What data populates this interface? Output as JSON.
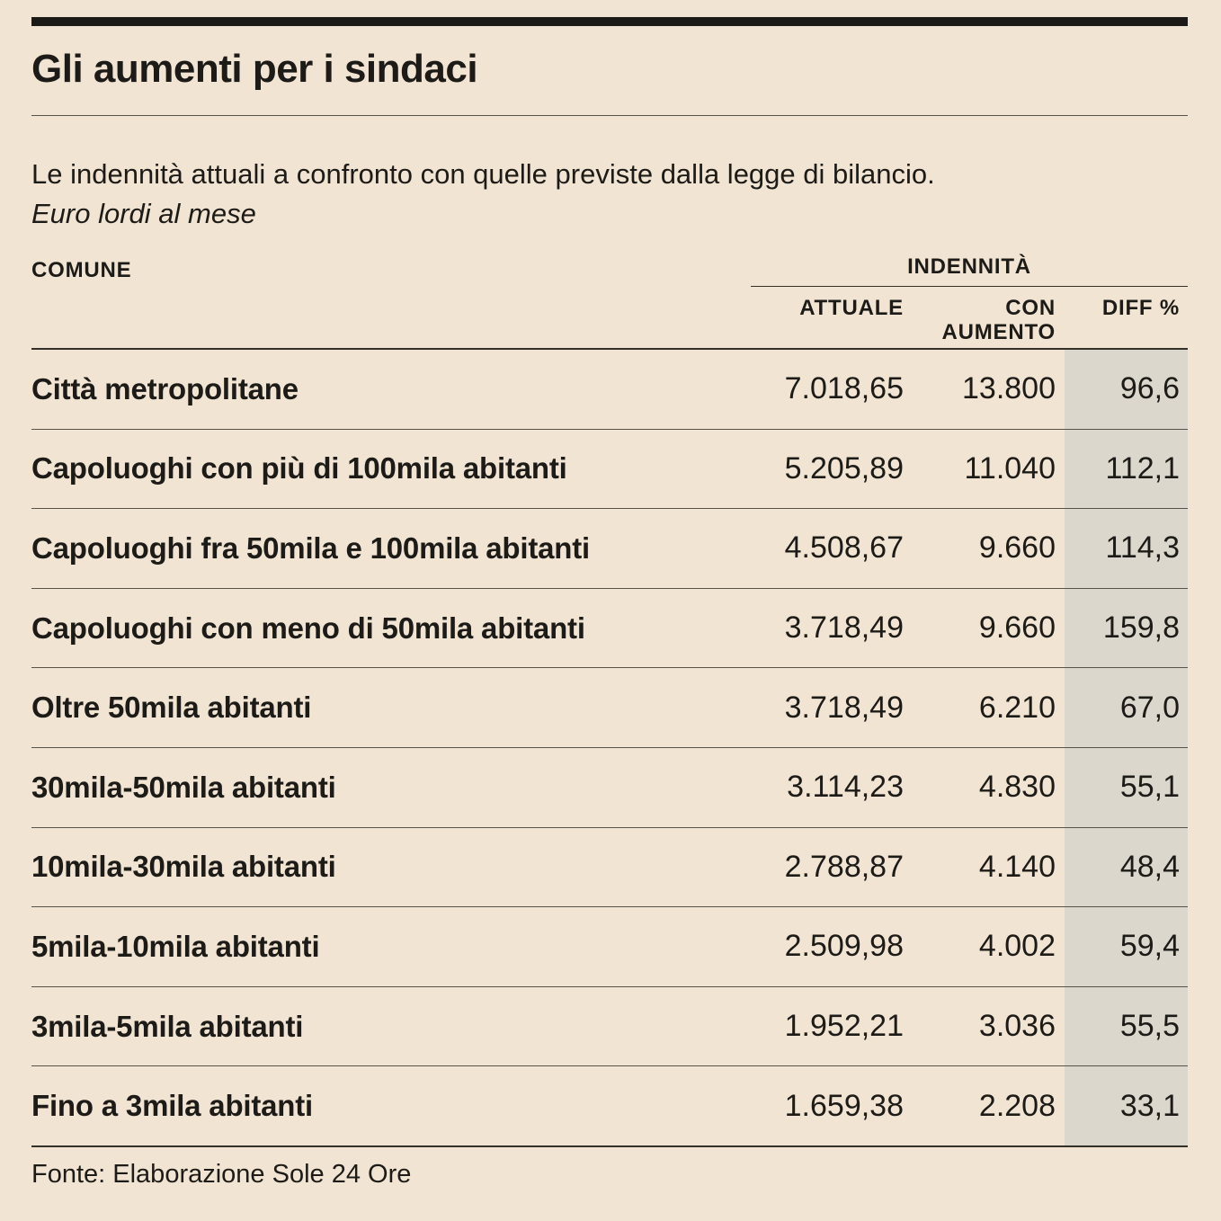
{
  "header": {
    "title": "Gli aumenti per i sindaci",
    "subtitle": "Le indennità attuali a confronto con quelle previste dalla legge di bilancio.",
    "unit_note": "Euro lordi al mese"
  },
  "table": {
    "columns": {
      "comune": "COMUNE",
      "group": "INDENNITÀ",
      "attuale": "ATTUALE",
      "con_aumento": "CON AUMENTO",
      "diff": "DIFF %"
    },
    "rows": [
      {
        "comune": "Città metropolitane",
        "attuale": "7.018,65",
        "con_aumento": "13.800",
        "diff": "96,6"
      },
      {
        "comune": "Capoluoghi con più di 100mila abitanti",
        "attuale": "5.205,89",
        "con_aumento": "11.040",
        "diff": "112,1"
      },
      {
        "comune": "Capoluoghi fra 50mila e 100mila abitanti",
        "attuale": "4.508,67",
        "con_aumento": "9.660",
        "diff": "114,3"
      },
      {
        "comune": "Capoluoghi con meno di 50mila abitanti",
        "attuale": "3.718,49",
        "con_aumento": "9.660",
        "diff": "159,8"
      },
      {
        "comune": "Oltre 50mila abitanti",
        "attuale": "3.718,49",
        "con_aumento": "6.210",
        "diff": "67,0"
      },
      {
        "comune": "30mila-50mila abitanti",
        "attuale": "3.114,23",
        "con_aumento": "4.830",
        "diff": "55,1"
      },
      {
        "comune": "10mila-30mila abitanti",
        "attuale": "2.788,87",
        "con_aumento": "4.140",
        "diff": "48,4"
      },
      {
        "comune": "5mila-10mila abitanti",
        "attuale": "2.509,98",
        "con_aumento": "4.002",
        "diff": "59,4"
      },
      {
        "comune": "3mila-5mila abitanti",
        "attuale": "1.952,21",
        "con_aumento": "3.036",
        "diff": "55,5"
      },
      {
        "comune": "Fino a 3mila abitanti",
        "attuale": "1.659,38",
        "con_aumento": "2.208",
        "diff": "33,1"
      }
    ]
  },
  "footer": {
    "source": "Fonte: Elaborazione Sole 24 Ore"
  },
  "colors": {
    "background": "#f1e4d3",
    "band": "#dcd7cd",
    "ink": "#1d1b17",
    "rule_dark": "#33302a",
    "rule_light": "#57534b"
  },
  "chart_data": {
    "type": "table",
    "title": "Gli aumenti per i sindaci",
    "subtitle": "Le indennità attuali a confronto con quelle previste dalla legge di bilancio.",
    "unit": "Euro lordi al mese",
    "columns": [
      "COMUNE",
      "INDENNITÀ ATTUALE",
      "INDENNITÀ CON AUMENTO",
      "DIFF %"
    ],
    "rows": [
      [
        "Città metropolitane",
        7018.65,
        13800,
        96.6
      ],
      [
        "Capoluoghi con più di 100mila abitanti",
        5205.89,
        11040,
        112.1
      ],
      [
        "Capoluoghi fra 50mila e 100mila abitanti",
        4508.67,
        9660,
        114.3
      ],
      [
        "Capoluoghi con meno di 50mila abitanti",
        3718.49,
        9660,
        159.8
      ],
      [
        "Oltre 50mila abitanti",
        3718.49,
        6210,
        67.0
      ],
      [
        "30mila-50mila abitanti",
        3114.23,
        4830,
        55.1
      ],
      [
        "10mila-30mila abitanti",
        2788.87,
        4140,
        48.4
      ],
      [
        "5mila-10mila abitanti",
        2509.98,
        4002,
        59.4
      ],
      [
        "3mila-5mila abitanti",
        1952.21,
        3036,
        55.5
      ],
      [
        "Fino a 3mila abitanti",
        1659.38,
        2208,
        33.1
      ]
    ],
    "source": "Fonte: Elaborazione Sole 24 Ore"
  }
}
